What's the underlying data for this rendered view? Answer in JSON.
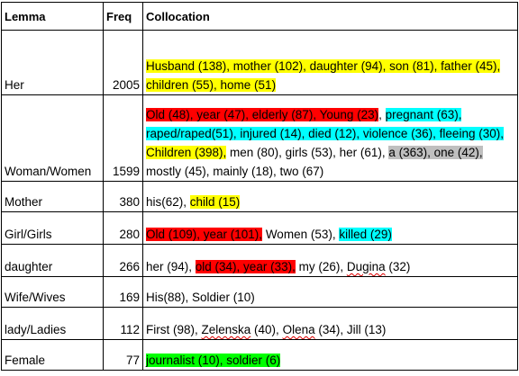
{
  "header": {
    "lemma": "Lemma",
    "freq": "Freq",
    "collocation": "Collocation"
  },
  "rows": [
    {
      "lemma": "Her",
      "freq": "2005",
      "height": 72,
      "segments": [
        {
          "text": "Husband (138), mother (102), daughter (94), son (81), father (45), children (55), home (51)",
          "hl": "yellow"
        }
      ]
    },
    {
      "lemma": "Woman/Women",
      "freq": "1599",
      "height": 96,
      "segments": [
        {
          "text": "Old (48), year (47), elderly (87), Young (23)",
          "hl": "red"
        },
        {
          "text": ", ",
          "hl": ""
        },
        {
          "text": "pregnant (63), raped/raped(51), injured (14), died (12), violence (36), fleeing (30),",
          "hl": "cyan"
        },
        {
          "text": " ",
          "hl": ""
        },
        {
          "text": "Children (398),",
          "hl": "yellow"
        },
        {
          "text": " men (80), girls (53), her (61), ",
          "hl": ""
        },
        {
          "text": "a (363), one (42),",
          "hl": "gray"
        },
        {
          "text": " mostly (45), mainly (18), two (67)",
          "hl": ""
        }
      ]
    },
    {
      "lemma": "Mother",
      "freq": "380",
      "height": 34,
      "segments": [
        {
          "text": "his(62), ",
          "hl": ""
        },
        {
          "text": "child (15)",
          "hl": "yellow"
        }
      ]
    },
    {
      "lemma": "Girl/Girls",
      "freq": "280",
      "height": 36,
      "segments": [
        {
          "text": "Old (109), year (101),",
          "hl": "red"
        },
        {
          "text": " Women (53), ",
          "hl": ""
        },
        {
          "text": "killed (29)",
          "hl": "cyan"
        }
      ]
    },
    {
      "lemma": "daughter",
      "freq": "266",
      "height": 36,
      "segments": [
        {
          "text": "her (94), ",
          "hl": ""
        },
        {
          "text": "old (34), year (33),",
          "hl": "red"
        },
        {
          "text": " my (26), ",
          "hl": ""
        },
        {
          "text": "Dugina",
          "hl": "",
          "squig": true
        },
        {
          "text": " (32)",
          "hl": ""
        }
      ]
    },
    {
      "lemma": "Wife/Wives",
      "freq": "169",
      "height": 34,
      "segments": [
        {
          "text": "His(88), Soldier (10)",
          "hl": ""
        }
      ]
    },
    {
      "lemma": "lady/Ladies",
      "freq": "112",
      "height": 36,
      "segments": [
        {
          "text": "First (98), ",
          "hl": ""
        },
        {
          "text": "Zelenska",
          "hl": "",
          "squig": true
        },
        {
          "text": " (40), ",
          "hl": ""
        },
        {
          "text": "Olena",
          "hl": "",
          "squig": true
        },
        {
          "text": " (34), Jill (13)",
          "hl": ""
        }
      ]
    },
    {
      "lemma": "Female",
      "freq": "77",
      "height": 34,
      "segments": [
        {
          "text": "journalist (10), soldier (6)",
          "hl": "green"
        }
      ]
    }
  ]
}
